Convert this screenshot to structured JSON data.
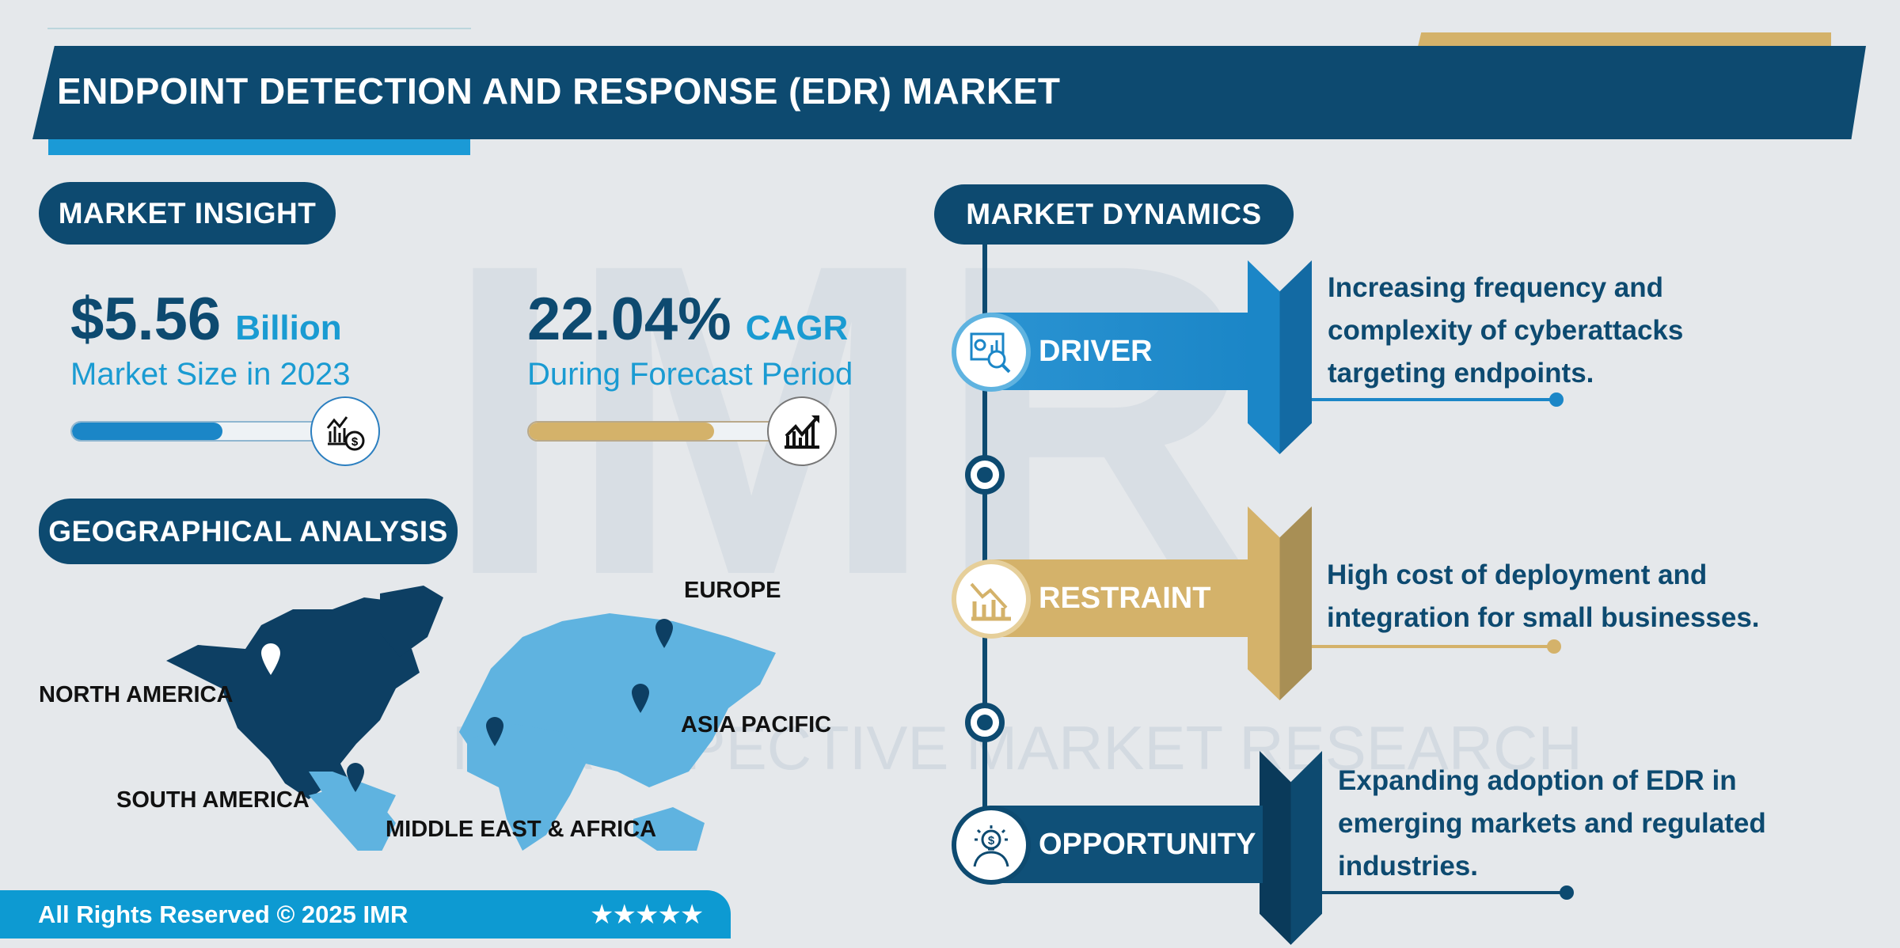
{
  "title": "ENDPOINT DETECTION AND RESPONSE (EDR) MARKET",
  "watermark": {
    "logo": "IMR",
    "text": "INTROSPECTIVE MARKET RESEARCH"
  },
  "market_insight": {
    "heading": "MARKET INSIGHT",
    "size": {
      "value": "$5.56",
      "unit": "Billion",
      "label": "Market Size in 2023",
      "bar_fill": 0.6,
      "icon": "chart-dollar-icon"
    },
    "cagr": {
      "value": "22.04%",
      "unit": "CAGR",
      "label": "During Forecast Period",
      "bar_fill": 0.74,
      "icon": "growth-chart-icon"
    }
  },
  "geo": {
    "heading": "GEOGRAPHICAL ANALYSIS",
    "regions": [
      "NORTH AMERICA",
      "SOUTH AMERICA",
      "MIDDLE EAST & AFRICA",
      "ASIA PACIFIC",
      "EUROPE"
    ],
    "highlighted": "NORTH AMERICA"
  },
  "dynamics": {
    "heading": "MARKET DYNAMICS",
    "items": [
      {
        "label": "DRIVER",
        "icon": "analytics-icon",
        "lines": [
          "Increasing frequency and",
          "complexity of cyberattacks",
          "targeting endpoints."
        ],
        "color": "#1b86c7"
      },
      {
        "label": "RESTRAINT",
        "icon": "declining-chart-icon",
        "lines": [
          "High cost of deployment and",
          "integration for small businesses."
        ],
        "color": "#d4b26a"
      },
      {
        "label": "OPPORTUNITY",
        "icon": "idea-dollar-icon",
        "lines": [
          "Expanding adoption of EDR in",
          "emerging markets and regulated",
          "industries."
        ],
        "color": "#0d4a70"
      }
    ]
  },
  "footer": {
    "text": "All Rights Reserved © 2025 IMR",
    "stars": "★★★★★"
  },
  "colors": {
    "navy": "#0d4a70",
    "blue": "#1b86c7",
    "light_blue": "#5fb3e0",
    "gold": "#d4b26a"
  }
}
